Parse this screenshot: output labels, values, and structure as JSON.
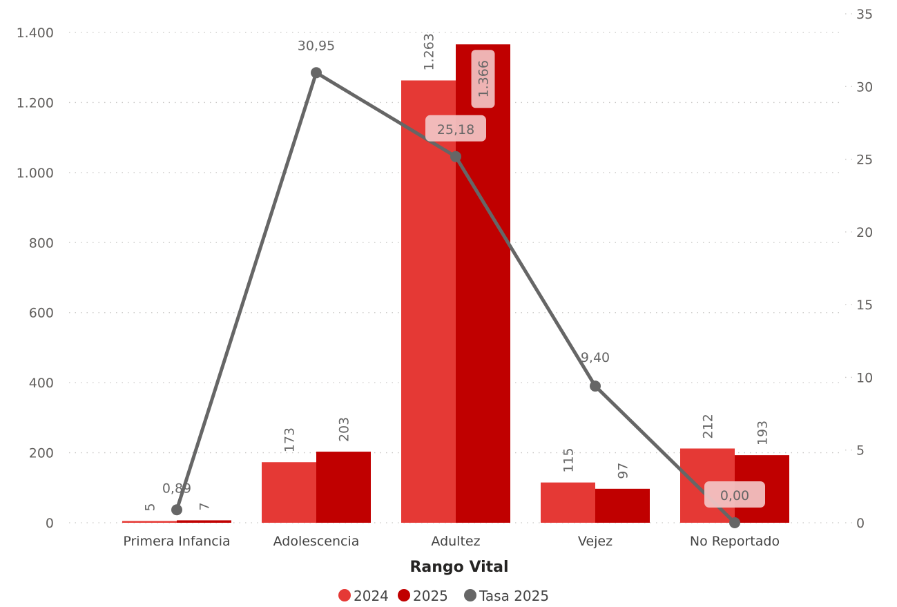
{
  "chart_data": {
    "type": "bar",
    "title": "",
    "xlabel": "Rango Vital",
    "ylabel": "",
    "categories": [
      "Primera Infancia",
      "Adolescencia",
      "Adultez",
      "Vejez",
      "No Reportado"
    ],
    "series": [
      {
        "name": "2024",
        "type": "bar",
        "axis": "left",
        "color": "#e53935",
        "values": [
          5,
          173,
          1263,
          115,
          212
        ],
        "labels": [
          "5",
          "173",
          "1.263",
          "115",
          "212"
        ]
      },
      {
        "name": "2025",
        "type": "bar",
        "axis": "left",
        "color": "#c00000",
        "values": [
          7,
          203,
          1366,
          97,
          193
        ],
        "labels": [
          "7",
          "203",
          "1.366",
          "97",
          "193"
        ]
      },
      {
        "name": "Tasa 2025",
        "type": "line",
        "axis": "right",
        "color": "#666666",
        "values": [
          0.89,
          30.95,
          25.18,
          9.4,
          0
        ],
        "labels": [
          "0,89",
          "30,95",
          "25,18",
          "9,40",
          "0,00"
        ]
      }
    ],
    "y_left": {
      "ylim": [
        0,
        1400
      ],
      "ticks": [
        0,
        200,
        400,
        600,
        800,
        1000,
        1200,
        1400
      ],
      "tick_labels": [
        "0",
        "200",
        "400",
        "600",
        "800",
        "1.000",
        "1.200",
        "1.400"
      ]
    },
    "y_right": {
      "ylim": [
        0,
        35
      ],
      "ticks": [
        0,
        5,
        10,
        15,
        20,
        25,
        30,
        35
      ],
      "tick_labels": [
        "0",
        "5",
        "10",
        "15",
        "20",
        "25",
        "30",
        "35"
      ]
    },
    "grid": true,
    "legend": {
      "position": "bottom-center",
      "items": [
        "2024",
        "2025",
        "Tasa 2025"
      ]
    }
  }
}
